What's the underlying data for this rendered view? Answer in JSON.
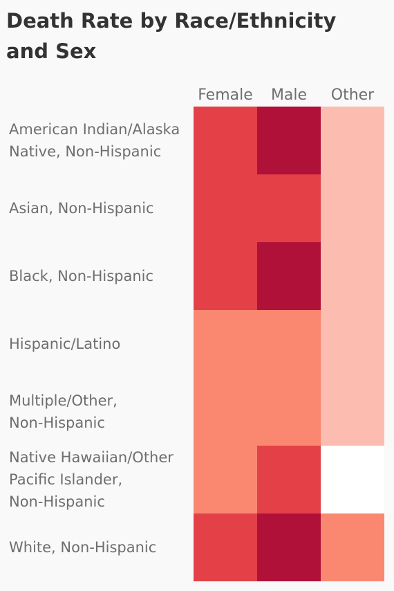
{
  "title": "Death Rate by Race/Ethnicity and Sex",
  "chart_data": {
    "type": "heatmap",
    "title": "Death Rate by Race/Ethnicity and Sex",
    "columns": [
      "Female",
      "Male",
      "Other"
    ],
    "rows": [
      {
        "label": "American Indian/Alaska Native, Non-Hispanic",
        "lines": [
          "American Indian/Alaska",
          "Native, Non-Hispanic"
        ]
      },
      {
        "label": "Asian, Non-Hispanic",
        "lines": [
          "Asian, Non-Hispanic"
        ]
      },
      {
        "label": "Black, Non-Hispanic",
        "lines": [
          "Black, Non-Hispanic"
        ]
      },
      {
        "label": "Hispanic/Latino",
        "lines": [
          "Hispanic/Latino"
        ]
      },
      {
        "label": "Multiple/Other, Non-Hispanic",
        "lines": [
          "Multiple/Other,",
          "Non-Hispanic"
        ]
      },
      {
        "label": "Native Hawaiian/Other Pacific Islander, Non-Hispanic",
        "lines": [
          "Native Hawaiian/Other",
          "Pacific Islander,",
          "Non-Hispanic"
        ]
      },
      {
        "label": "White, Non-Hispanic",
        "lines": [
          "White, Non-Hispanic"
        ]
      }
    ],
    "levels": [
      [
        3,
        4,
        1
      ],
      [
        3,
        3,
        1
      ],
      [
        3,
        4,
        1
      ],
      [
        2,
        2,
        1
      ],
      [
        2,
        2,
        1
      ],
      [
        2,
        3,
        null
      ],
      [
        3,
        4,
        2
      ]
    ],
    "level_colors": {
      "1": "#fdbcb0",
      "2": "#fa8770",
      "3": "#e34047",
      "4": "#b01138"
    },
    "missing_color": "#ffffff",
    "legend": "none"
  }
}
